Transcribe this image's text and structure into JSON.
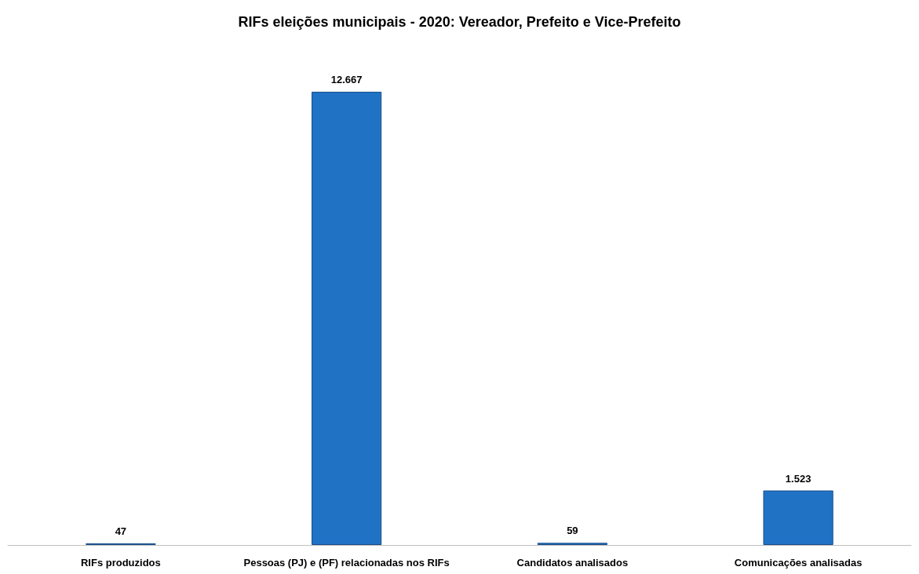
{
  "chart_data": {
    "type": "bar",
    "title": "RIFs eleições municipais - 2020: Vereador, Prefeito e Vice-Prefeito",
    "categories": [
      "RIFs produzidos",
      "Pessoas (PJ) e (PF) relacionadas nos RIFs",
      "Candidatos analisados",
      "Comunicações analisadas"
    ],
    "values": [
      47,
      12667,
      59,
      1523
    ],
    "value_labels": [
      "47",
      "12.667",
      "59",
      "1.523"
    ],
    "color": "#2072c4"
  }
}
